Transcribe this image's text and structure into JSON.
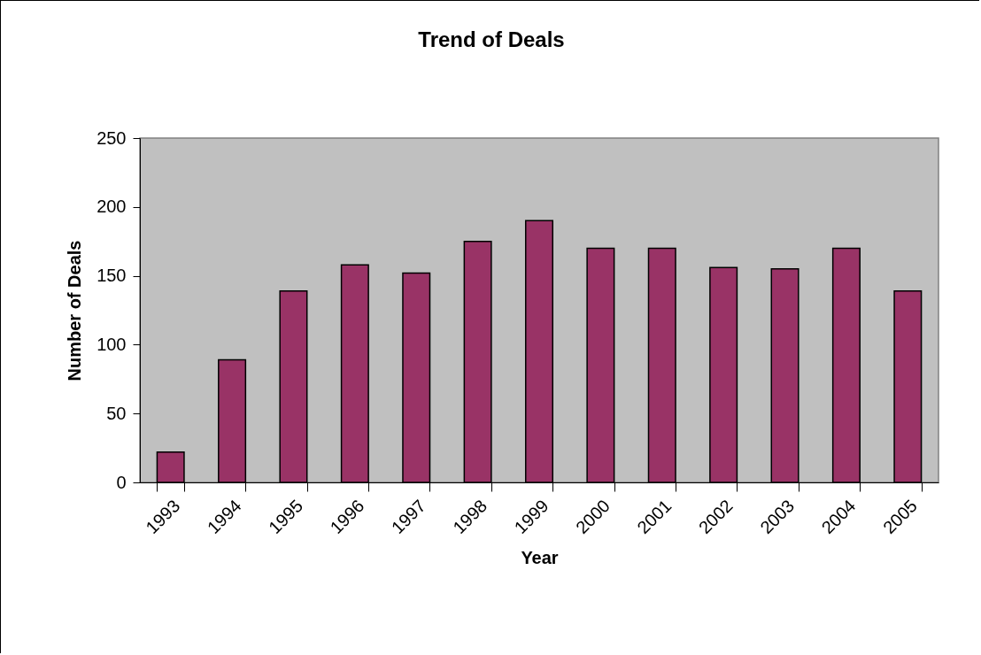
{
  "chart_data": {
    "type": "bar",
    "title": "Trend of Deals",
    "xlabel": "Year",
    "ylabel": "Number of Deals",
    "categories": [
      "1993",
      "1994",
      "1995",
      "1996",
      "1997",
      "1998",
      "1999",
      "2000",
      "2001",
      "2002",
      "2003",
      "2004",
      "2005"
    ],
    "values": [
      22,
      89,
      139,
      158,
      152,
      175,
      190,
      170,
      170,
      156,
      155,
      170,
      139
    ],
    "color": "#993366",
    "ylim": [
      0,
      250
    ],
    "yticks": [
      0,
      50,
      100,
      150,
      200,
      250
    ],
    "grid": false
  }
}
